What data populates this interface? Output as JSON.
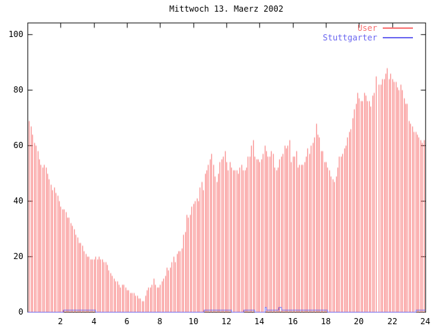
{
  "title": "Mittwoch 13. Maerz 2002",
  "colors": {
    "user_series": "#f86e6e",
    "stuttgarter_series": "#6a66f0",
    "axis": "#000000",
    "background": "#ffffff"
  },
  "legend": {
    "position": "top-right",
    "items": [
      {
        "label": "User",
        "color": "#f86e6e"
      },
      {
        "label": "Stuttgarter",
        "color": "#6a66f0"
      }
    ]
  },
  "chart_data": {
    "type": "bar",
    "title": "Mittwoch 13. Maerz 2002",
    "xlabel": "",
    "ylabel": "",
    "x_unit": "hour-of-day",
    "xlim": [
      0,
      24
    ],
    "ylim": [
      0,
      104
    ],
    "xticks": [
      2,
      4,
      6,
      8,
      10,
      12,
      14,
      16,
      18,
      20,
      22,
      24
    ],
    "yticks": [
      0,
      20,
      40,
      60,
      80,
      100
    ],
    "grid": false,
    "legend_position": "top-right",
    "series": [
      {
        "name": "User",
        "style": "impulses",
        "color": "#f86e6e",
        "x_start": 0,
        "x_step": 0.1,
        "values": [
          68,
          69,
          67,
          64,
          61,
          60,
          58,
          55,
          53,
          52,
          53,
          52,
          50,
          48,
          46,
          44,
          45,
          43,
          42,
          40,
          38,
          37,
          37,
          36,
          34,
          34,
          32,
          31,
          30,
          28,
          27,
          25,
          25,
          24,
          22,
          21,
          20,
          20,
          19,
          19,
          19,
          20,
          19,
          20,
          19,
          19,
          18,
          18,
          17,
          15,
          14,
          13,
          12,
          11,
          11,
          10,
          9,
          10,
          10,
          9,
          8,
          8,
          7,
          7,
          7,
          6,
          6,
          5,
          5,
          4,
          4,
          6,
          8,
          9,
          9,
          10,
          12,
          10,
          9,
          9,
          10,
          11,
          12,
          13,
          16,
          15,
          16,
          18,
          20,
          18,
          21,
          22,
          22,
          23,
          28,
          29,
          35,
          34,
          35,
          38,
          39,
          40,
          41,
          40,
          45,
          47,
          44,
          50,
          51,
          53,
          55,
          57,
          53,
          49,
          47,
          50,
          54,
          55,
          56,
          58,
          54,
          51,
          54,
          52,
          51,
          51,
          51,
          50,
          52,
          53,
          51,
          51,
          52,
          56,
          56,
          60,
          62,
          56,
          55,
          55,
          54,
          55,
          57,
          60,
          58,
          56,
          56,
          58,
          57,
          52,
          51,
          52,
          55,
          56,
          57,
          60,
          59,
          60,
          62,
          54,
          56,
          56,
          58,
          52,
          53,
          53,
          53,
          54,
          56,
          59,
          57,
          60,
          61,
          63,
          68,
          64,
          63,
          58,
          58,
          54,
          54,
          52,
          51,
          49,
          48,
          47,
          49,
          52,
          56,
          56,
          57,
          59,
          60,
          63,
          65,
          66,
          70,
          73,
          75,
          79,
          77,
          76,
          76,
          79,
          78,
          76,
          76,
          74,
          78,
          79,
          85,
          null,
          82,
          82,
          84,
          84,
          86,
          88,
          84,
          86,
          84,
          83,
          83,
          81,
          80,
          82,
          80,
          77,
          75,
          75,
          69,
          68,
          67,
          65,
          65,
          64,
          63,
          62,
          61,
          62,
          61
        ]
      },
      {
        "name": "Stuttgarter",
        "style": "step-line",
        "color": "#6a66f0",
        "segments": [
          {
            "x0": 0.0,
            "x1": 2.15,
            "value": 0
          },
          {
            "x0": 2.15,
            "x1": 4.1,
            "value": 0.8
          },
          {
            "x0": 4.1,
            "x1": 10.65,
            "value": 0
          },
          {
            "x0": 10.65,
            "x1": 12.3,
            "value": 0.8
          },
          {
            "x0": 12.3,
            "x1": 13.05,
            "value": 0
          },
          {
            "x0": 13.05,
            "x1": 13.7,
            "value": 0.8
          },
          {
            "x0": 13.7,
            "x1": 14.3,
            "value": 0
          },
          {
            "x0": 14.3,
            "x1": 14.4,
            "value": 1.8
          },
          {
            "x0": 14.4,
            "x1": 15.15,
            "value": 0.8
          },
          {
            "x0": 15.15,
            "x1": 15.3,
            "value": 1.8
          },
          {
            "x0": 15.3,
            "x1": 18.1,
            "value": 0.8
          },
          {
            "x0": 18.1,
            "x1": 23.4,
            "value": 0
          },
          {
            "x0": 23.4,
            "x1": 24.0,
            "value": 0.8
          }
        ]
      }
    ]
  }
}
